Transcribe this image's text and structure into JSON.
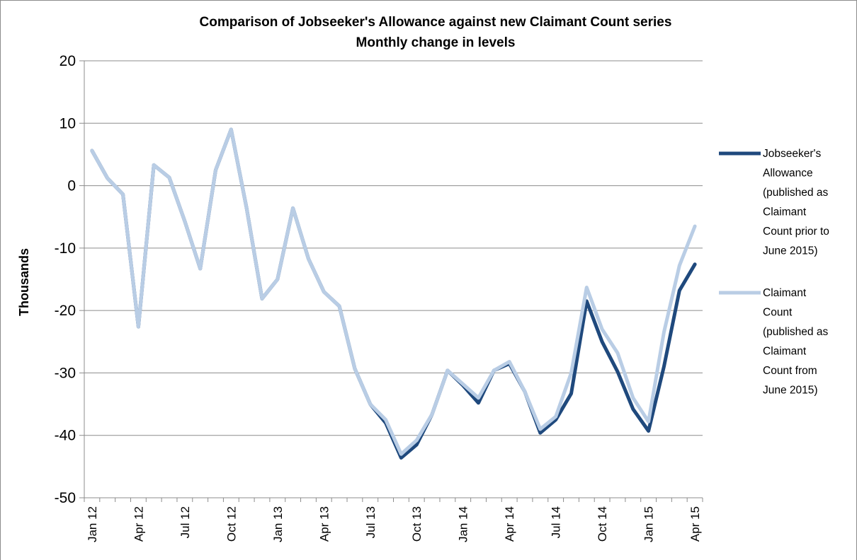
{
  "chart_data": {
    "type": "line",
    "title": "Comparison of Jobseeker's Allowance against new Claimant Count series",
    "subtitle": "Monthly change in levels",
    "xlabel": "",
    "ylabel": "Thousands",
    "ylim": [
      -50,
      20
    ],
    "yticks": [
      20,
      10,
      0,
      -10,
      -20,
      -30,
      -40,
      -50
    ],
    "grid": true,
    "legend_position": "right",
    "x": [
      "Jan 12",
      "Feb 12",
      "Mar 12",
      "Apr 12",
      "May 12",
      "Jun 12",
      "Jul 12",
      "Aug 12",
      "Sep 12",
      "Oct 12",
      "Nov 12",
      "Dec 12",
      "Jan 13",
      "Feb 13",
      "Mar 13",
      "Apr 13",
      "May 13",
      "Jun 13",
      "Jul 13",
      "Aug 13",
      "Sep 13",
      "Oct 13",
      "Nov 13",
      "Dec 13",
      "Jan 14",
      "Feb 14",
      "Mar 14",
      "Apr 14",
      "May 14",
      "Jun 14",
      "Jul 14",
      "Aug 14",
      "Sep 14",
      "Oct 14",
      "Nov 14",
      "Dec 14",
      "Jan 15",
      "Feb 15",
      "Mar 15",
      "Apr 15"
    ],
    "tick_labels": [
      "Jan 12",
      "Apr 12",
      "Jul 12",
      "Oct 12",
      "Jan 13",
      "Apr 13",
      "Jul 13",
      "Oct 13",
      "Jan 14",
      "Apr 14",
      "Jul 14",
      "Oct 14",
      "Jan 15",
      "Apr 15"
    ],
    "series": [
      {
        "name": "Jobseeker's Allowance (published as Claimant Count prior to June 2015)",
        "legend_lines": [
          "Jobseeker's",
          "Allowance",
          "(published as",
          "Claimant",
          "Count prior to",
          "June 2015)"
        ],
        "color": "#1f497d",
        "values": [
          5.6,
          1.2,
          -1.4,
          -22.6,
          3.3,
          1.3,
          -5.7,
          -13.3,
          2.5,
          9.0,
          -3.6,
          -18.1,
          -15.0,
          -3.6,
          -11.7,
          -17.0,
          -19.3,
          -29.3,
          -35.0,
          -38.0,
          -43.6,
          -41.5,
          -36.6,
          -29.6,
          -32.0,
          -34.8,
          -29.6,
          -28.5,
          -33.0,
          -39.6,
          -37.5,
          -33.3,
          -18.5,
          -25.0,
          -29.8,
          -35.8,
          -39.3,
          -29.0,
          -16.8,
          -12.6
        ]
      },
      {
        "name": "Claimant Count (published as Claimant Count from June 2015)",
        "legend_lines": [
          "Claimant",
          "Count",
          "(published as",
          "Claimant",
          "Count from",
          "June 2015)"
        ],
        "color": "#b9cde5",
        "values": [
          5.6,
          1.2,
          -1.4,
          -22.6,
          3.3,
          1.3,
          -5.7,
          -13.3,
          2.5,
          9.0,
          -3.6,
          -18.1,
          -15.0,
          -3.6,
          -11.7,
          -17.0,
          -19.3,
          -29.3,
          -35.0,
          -37.5,
          -43.0,
          -40.8,
          -36.6,
          -29.6,
          -31.8,
          -34.0,
          -29.6,
          -28.2,
          -33.0,
          -39.0,
          -37.0,
          -30.0,
          -16.3,
          -23.0,
          -26.8,
          -34.0,
          -37.8,
          -23.5,
          -12.8,
          -6.5
        ]
      }
    ]
  }
}
